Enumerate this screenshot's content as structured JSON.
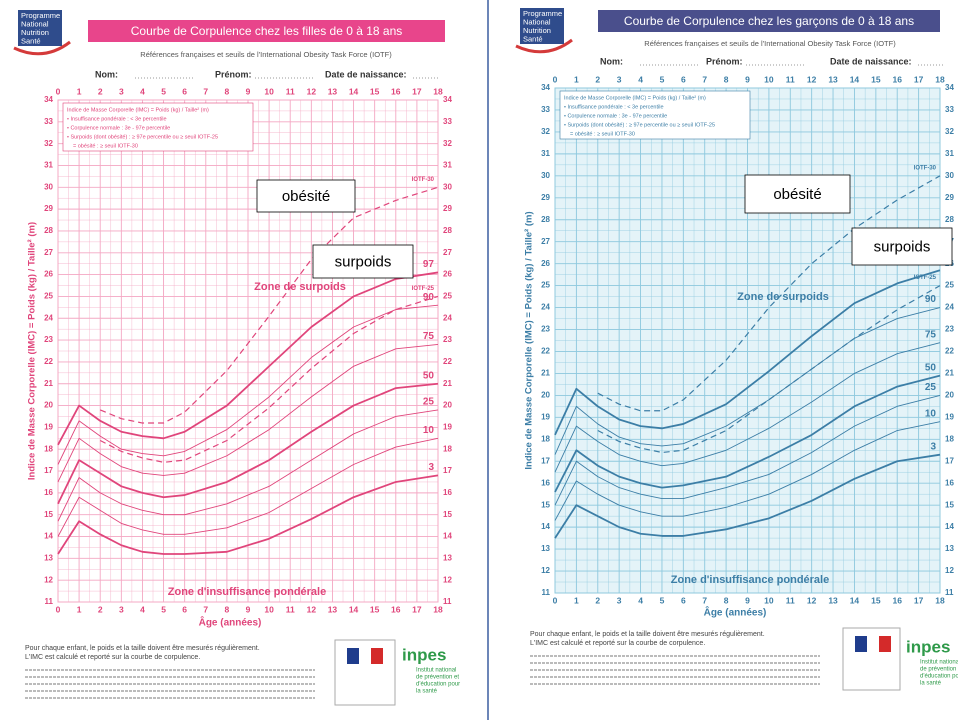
{
  "chart_data": [
    {
      "type": "line",
      "logo": [
        "Programme",
        "National",
        "Nutrition",
        "Santé"
      ],
      "title": "Courbe de Corpulence chez les filles de 0 à 18 ans",
      "subtitle": "Références françaises et seuils de l'International Obesity Task Force (IOTF)",
      "fields": [
        "Nom:",
        "Prénom:",
        "Date de naissance:"
      ],
      "legend_text": [
        "Indice de Masse Corporelle (IMC) = Poids (kg) / Taille² (m)",
        "• Insuffisance pondérale : < 3e percentile",
        "• Corpulence normale : 3e - 97e percentile",
        "• Surpoids (dont obésité) : ≥ 97e percentile ou ≥ seuil IOTF-25",
        "= obésité : ≥ seuil IOTF-30"
      ],
      "ylabel": "Indice de Masse Corporelle (IMC) = Poids (kg) / Taille² (m)",
      "xlabel": "Âge (années)",
      "zones": [
        "Zone de surpoids",
        "Zone d'insuffisance pondérale"
      ],
      "annotations": [
        "obésité",
        "surpoids"
      ],
      "footer": [
        "Pour chaque enfant, le poids et la taille doivent être mesurés régulièrement.",
        "L'IMC est calculé et reporté sur la courbe de corpulence."
      ],
      "inpes": [
        "inpes",
        "Institut national",
        "de prévention et",
        "d'éducation pour",
        "la santé"
      ],
      "color": "#e0457b",
      "grid_color": "#f4a9c4",
      "bar_color": "#e8458b",
      "grid": true,
      "x": [
        0,
        1,
        2,
        3,
        4,
        5,
        6,
        8,
        10,
        12,
        14,
        16,
        18
      ],
      "series": [
        {
          "name": "3",
          "values": [
            13.2,
            14.7,
            14.1,
            13.6,
            13.3,
            13.2,
            13.2,
            13.3,
            13.9,
            14.8,
            15.8,
            16.5,
            16.8
          ]
        },
        {
          "name": "10",
          "values": [
            14,
            15.8,
            15.2,
            14.6,
            14.3,
            14.1,
            14.1,
            14.4,
            15.1,
            16.2,
            17.3,
            18.1,
            18.5
          ]
        },
        {
          "name": "25",
          "values": [
            14.7,
            16.7,
            16,
            15.5,
            15.2,
            15,
            15,
            15.5,
            16.3,
            17.5,
            18.7,
            19.5,
            19.8
          ]
        },
        {
          "name": "50",
          "values": [
            15.5,
            17.5,
            16.9,
            16.3,
            16,
            15.8,
            15.9,
            16.5,
            17.5,
            18.8,
            20,
            20.8,
            21
          ]
        },
        {
          "name": "75",
          "values": [
            16.5,
            18.5,
            17.8,
            17.2,
            16.9,
            16.8,
            16.9,
            17.7,
            18.9,
            20.4,
            21.8,
            22.6,
            22.8
          ]
        },
        {
          "name": "90",
          "values": [
            17.3,
            19.3,
            18.6,
            18,
            17.8,
            17.7,
            17.9,
            18.9,
            20.4,
            22.2,
            23.6,
            24.4,
            24.6
          ]
        },
        {
          "name": "97",
          "values": [
            18.2,
            20,
            19.3,
            18.8,
            18.6,
            18.5,
            18.8,
            20,
            21.8,
            23.6,
            25,
            25.8,
            26.1
          ]
        },
        {
          "name": "IOTF-25",
          "dashed": true,
          "values": [
            null,
            null,
            18.4,
            17.9,
            17.6,
            17.4,
            17.5,
            18.4,
            19.9,
            21.7,
            23.3,
            24.4,
            25
          ]
        },
        {
          "name": "IOTF-30",
          "dashed": true,
          "values": [
            null,
            null,
            19.8,
            19.4,
            19.2,
            19.2,
            19.7,
            21.6,
            24.1,
            26.7,
            28.6,
            29.4,
            30
          ]
        }
      ],
      "xlim": [
        0,
        18
      ],
      "xticks": [
        0,
        1,
        2,
        3,
        4,
        5,
        6,
        7,
        8,
        9,
        10,
        11,
        12,
        13,
        14,
        15,
        16,
        17,
        18
      ],
      "ylim": [
        11,
        34
      ],
      "yticks": [
        11,
        12,
        13,
        14,
        15,
        16,
        17,
        18,
        19,
        20,
        21,
        22,
        23,
        24,
        25,
        26,
        27,
        28,
        29,
        30,
        31,
        32,
        33,
        34
      ]
    },
    {
      "type": "line",
      "logo": [
        "Programme",
        "National",
        "Nutrition",
        "Santé"
      ],
      "title": "Courbe de Corpulence chez les garçons de 0 à 18 ans",
      "subtitle": "Références françaises et seuils de l'International Obesity Task Force (IOTF)",
      "fields": [
        "Nom:",
        "Prénom:",
        "Date de naissance:"
      ],
      "legend_text": [
        "Indice de Masse Corporelle (IMC) = Poids (kg) / Taille² (m)",
        "• Insuffisance pondérale : < 3e percentile",
        "• Corpulence normale : 3e - 97e percentile",
        "• Surpoids (dont obésité) : ≥ 97e percentile ou ≥ seuil IOTF-25",
        "= obésité : ≥ seuil IOTF-30"
      ],
      "ylabel": "Indice de Masse Corporelle (IMC) = Poids (kg) / Taille² (m)",
      "xlabel": "Âge (années)",
      "zones": [
        "Zone de surpoids",
        "Zone d'insuffisance pondérale"
      ],
      "annotations": [
        "obésité",
        "surpoids"
      ],
      "footer": [
        "Pour chaque enfant, le poids et la taille doivent être mesurés régulièrement.",
        "L'IMC est calculé et reporté sur la courbe de corpulence."
      ],
      "inpes": [
        "inpes",
        "Institut national",
        "de prévention et",
        "d'éducation pour",
        "la santé"
      ],
      "color": "#3c7ea6",
      "grid_color": "#8fc9de",
      "bar_color": "#4a4f8c",
      "grid": true,
      "x": [
        0,
        1,
        2,
        3,
        4,
        5,
        6,
        8,
        10,
        12,
        14,
        16,
        18
      ],
      "series": [
        {
          "name": "3",
          "values": [
            13.5,
            15,
            14.5,
            14,
            13.7,
            13.6,
            13.6,
            13.9,
            14.4,
            15.2,
            16.2,
            17,
            17.3
          ]
        },
        {
          "name": "10",
          "values": [
            14.3,
            16.1,
            15.5,
            15,
            14.7,
            14.5,
            14.5,
            14.9,
            15.5,
            16.4,
            17.5,
            18.4,
            18.8
          ]
        },
        {
          "name": "25",
          "values": [
            15,
            17,
            16.3,
            15.8,
            15.5,
            15.3,
            15.3,
            15.8,
            16.4,
            17.4,
            18.6,
            19.5,
            20
          ]
        },
        {
          "name": "50",
          "values": [
            15.6,
            17.5,
            16.8,
            16.3,
            16,
            15.8,
            15.9,
            16.3,
            17.2,
            18.2,
            19.5,
            20.4,
            20.9
          ]
        },
        {
          "name": "75",
          "values": [
            16.5,
            18.6,
            17.9,
            17.3,
            17,
            16.8,
            16.9,
            17.5,
            18.5,
            19.7,
            21,
            21.9,
            22.4
          ]
        },
        {
          "name": "90",
          "values": [
            17.3,
            19.5,
            18.7,
            18.1,
            17.8,
            17.7,
            17.8,
            18.6,
            19.8,
            21.2,
            22.6,
            23.5,
            24
          ]
        },
        {
          "name": "97",
          "values": [
            18.2,
            20.3,
            19.5,
            18.9,
            18.6,
            18.5,
            18.7,
            19.6,
            21.1,
            22.7,
            24.2,
            25.1,
            25.7
          ]
        },
        {
          "name": "IOTF-25",
          "dashed": true,
          "values": [
            null,
            null,
            18.4,
            17.9,
            17.6,
            17.4,
            17.5,
            18.4,
            19.8,
            21.2,
            22.6,
            23.9,
            25
          ]
        },
        {
          "name": "IOTF-30",
          "dashed": true,
          "values": [
            null,
            null,
            20.1,
            19.6,
            19.3,
            19.3,
            19.8,
            21.6,
            24,
            26,
            27.6,
            28.9,
            30
          ]
        }
      ],
      "xlim": [
        0,
        18
      ],
      "xticks": [
        0,
        1,
        2,
        3,
        4,
        5,
        6,
        7,
        8,
        9,
        10,
        11,
        12,
        13,
        14,
        15,
        16,
        17,
        18
      ],
      "ylim": [
        11,
        34
      ],
      "yticks": [
        11,
        12,
        13,
        14,
        15,
        16,
        17,
        18,
        19,
        20,
        21,
        22,
        23,
        24,
        25,
        26,
        27,
        28,
        29,
        30,
        31,
        32,
        33,
        34
      ]
    }
  ]
}
